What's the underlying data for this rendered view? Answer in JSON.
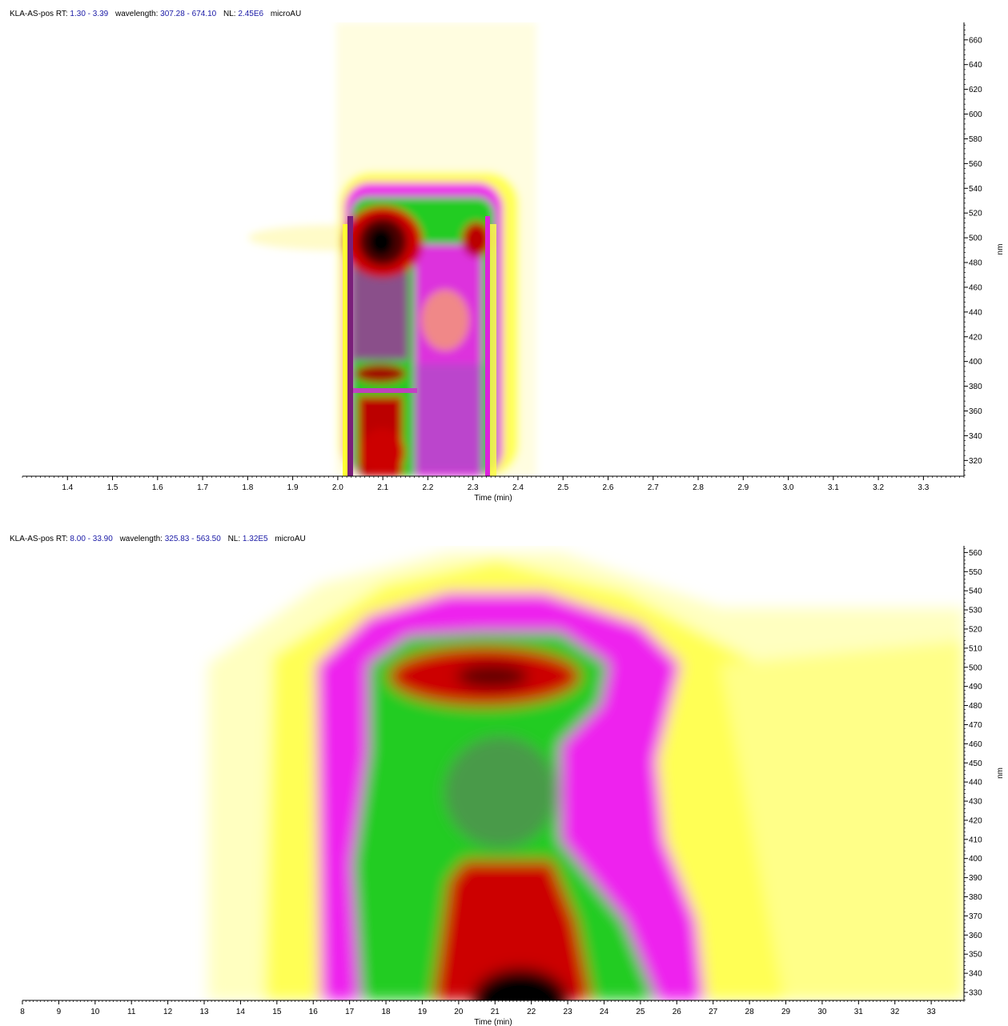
{
  "chart_data": [
    {
      "type": "heatmap",
      "header": {
        "name": "KLA-AS-pos",
        "rt_label": "RT:",
        "rt_range": "1.30 - 3.39",
        "wl_label": "wavelength:",
        "wl_range": "307.28 - 674.10",
        "nl_label": "NL:",
        "nl_value": "2.45E6",
        "unit": "microAU"
      },
      "xlabel": "Time (min)",
      "ylabel": "nm",
      "xlim": [
        1.3,
        3.39
      ],
      "ylim": [
        307.28,
        674.1
      ],
      "x_ticks": [
        1.4,
        1.5,
        1.6,
        1.7,
        1.8,
        1.9,
        2.0,
        2.1,
        2.2,
        2.3,
        2.4,
        2.5,
        2.6,
        2.7,
        2.8,
        2.9,
        3.0,
        3.1,
        3.2,
        3.3
      ],
      "x_tick_labels": [
        "1.4",
        "1.5",
        "1.6",
        "1.7",
        "1.8",
        "1.9",
        "2.0",
        "2.1",
        "2.2",
        "2.3",
        "2.4",
        "2.5",
        "2.6",
        "2.7",
        "2.8",
        "2.9",
        "3.0",
        "3.1",
        "3.2",
        "3.3"
      ],
      "y_ticks": [
        320,
        340,
        360,
        380,
        400,
        420,
        440,
        460,
        480,
        500,
        520,
        540,
        560,
        580,
        600,
        620,
        640,
        660
      ],
      "y_tick_labels": [
        "320",
        "340",
        "360",
        "380",
        "400",
        "420",
        "440",
        "460",
        "480",
        "500",
        "520",
        "540",
        "560",
        "580",
        "600",
        "620",
        "640",
        "660"
      ],
      "color_scale": [
        "#ffffff",
        "#ffff44",
        "#ee00ee",
        "#22cc22",
        "#cc0000",
        "#000000"
      ],
      "peaks": [
        {
          "time": 2.1,
          "wavelength": 492,
          "intensity": 1.0
        },
        {
          "time": 2.3,
          "wavelength": 498,
          "intensity": 0.72
        },
        {
          "time": 2.23,
          "wavelength": 432,
          "intensity": 0.38
        },
        {
          "time": 2.1,
          "wavelength": 340,
          "intensity": 0.75
        }
      ],
      "grid": false
    },
    {
      "type": "heatmap",
      "header": {
        "name": "KLA-AS-pos",
        "rt_label": "RT:",
        "rt_range": "8.00 - 33.90",
        "wl_label": "wavelength:",
        "wl_range": "325.83 - 563.50",
        "nl_label": "NL:",
        "nl_value": "1.32E5",
        "unit": "microAU"
      },
      "xlabel": "Time (min)",
      "ylabel": "nm",
      "xlim": [
        8.0,
        33.9
      ],
      "ylim": [
        325.83,
        563.5
      ],
      "x_ticks": [
        8,
        9,
        10,
        11,
        12,
        13,
        14,
        15,
        16,
        17,
        18,
        19,
        20,
        21,
        22,
        23,
        24,
        25,
        26,
        27,
        28,
        29,
        30,
        31,
        32,
        33
      ],
      "x_tick_labels": [
        "8",
        "9",
        "10",
        "11",
        "12",
        "13",
        "14",
        "15",
        "16",
        "17",
        "18",
        "19",
        "20",
        "21",
        "22",
        "23",
        "24",
        "25",
        "26",
        "27",
        "28",
        "29",
        "30",
        "31",
        "32",
        "33"
      ],
      "y_ticks": [
        330,
        340,
        350,
        360,
        370,
        380,
        390,
        400,
        410,
        420,
        430,
        440,
        450,
        460,
        470,
        480,
        490,
        500,
        510,
        520,
        530,
        540,
        550,
        560
      ],
      "y_tick_labels": [
        "330",
        "340",
        "350",
        "360",
        "370",
        "380",
        "390",
        "400",
        "410",
        "420",
        "430",
        "440",
        "450",
        "460",
        "470",
        "480",
        "490",
        "500",
        "510",
        "520",
        "530",
        "540",
        "550",
        "560"
      ],
      "color_scale": [
        "#ffffff",
        "#ffff44",
        "#ee00ee",
        "#22cc22",
        "#cc0000",
        "#000000"
      ],
      "peaks": [
        {
          "time": 21.0,
          "wavelength": 494,
          "intensity": 0.9
        },
        {
          "time": 21.5,
          "wavelength": 330,
          "intensity": 1.0
        },
        {
          "time": 21.5,
          "wavelength": 430,
          "intensity": 0.5
        }
      ],
      "grid": false
    }
  ]
}
